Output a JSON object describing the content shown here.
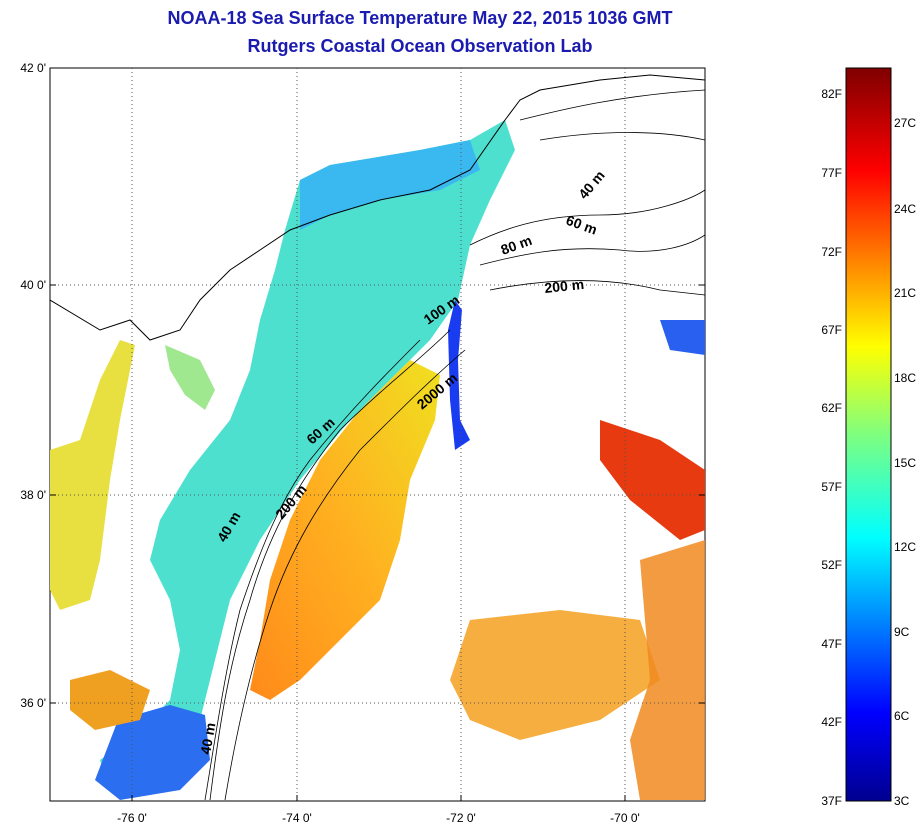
{
  "title": {
    "line1": "NOAA-18 Sea Surface Temperature May 22, 2015 1036 GMT",
    "line2": "Rutgers Coastal Ocean Observation Lab"
  },
  "map": {
    "lat_labels": [
      "42 0'",
      "40 0'",
      "38 0'",
      "36 0'"
    ],
    "lon_labels": [
      "-76 0'",
      "-74 0'",
      "-72 0'",
      "-70 0'"
    ],
    "depth_labels": [
      "40 m",
      "60 m",
      "80 m",
      "200 m",
      "100 m",
      "2000 m",
      "60 m",
      "200 m",
      "40 m",
      "40 m"
    ]
  },
  "colorbar": {
    "fahrenheit": [
      "82F",
      "77F",
      "72F",
      "67F",
      "62F",
      "57F",
      "52F",
      "47F",
      "42F",
      "37F"
    ],
    "celsius": [
      "27C",
      "24C",
      "21C",
      "18C",
      "15C",
      "12C",
      "9C",
      "6C",
      "3C"
    ]
  }
}
